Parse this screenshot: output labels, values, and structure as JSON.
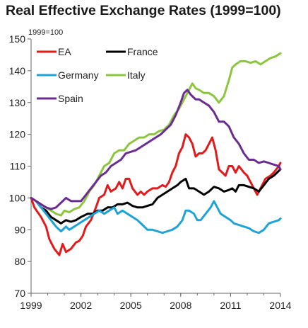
{
  "chart_data": {
    "type": "line",
    "title": "Real Effective Exchange Rates (1999=100)",
    "unit_label": "1999=100",
    "xlabel": "",
    "ylabel": "",
    "xlim": [
      1999,
      2014
    ],
    "ylim": [
      70,
      150
    ],
    "x_ticks": [
      1999,
      2002,
      2005,
      2008,
      2011,
      2014
    ],
    "y_ticks": [
      70,
      80,
      90,
      100,
      110,
      120,
      130,
      140,
      150
    ],
    "grid": false,
    "legend_position": "top-left",
    "series": [
      {
        "name": "EA",
        "color": "#e31a1c",
        "points": [
          [
            1999,
            100
          ],
          [
            1999.2,
            97
          ],
          [
            1999.6,
            94
          ],
          [
            1999.9,
            91
          ],
          [
            2000.1,
            87
          ],
          [
            2000.4,
            84
          ],
          [
            2000.7,
            82
          ],
          [
            2000.9,
            85.5
          ],
          [
            2001.1,
            83
          ],
          [
            2001.4,
            84
          ],
          [
            2001.7,
            86
          ],
          [
            2001.9,
            86.5
          ],
          [
            2002.1,
            88
          ],
          [
            2002.3,
            91
          ],
          [
            2002.6,
            93
          ],
          [
            2002.9,
            97
          ],
          [
            2003.1,
            100
          ],
          [
            2003.4,
            101
          ],
          [
            2003.6,
            104
          ],
          [
            2003.8,
            102
          ],
          [
            2004.1,
            103
          ],
          [
            2004.3,
            105
          ],
          [
            2004.5,
            103
          ],
          [
            2004.7,
            106
          ],
          [
            2004.9,
            106
          ],
          [
            2005.1,
            103
          ],
          [
            2005.4,
            101
          ],
          [
            2005.6,
            102
          ],
          [
            2005.8,
            101
          ],
          [
            2006.0,
            102
          ],
          [
            2006.3,
            103
          ],
          [
            2006.6,
            103
          ],
          [
            2006.9,
            104
          ],
          [
            2007.1,
            103.5
          ],
          [
            2007.3,
            105
          ],
          [
            2007.5,
            108
          ],
          [
            2007.7,
            110
          ],
          [
            2007.9,
            114
          ],
          [
            2008.1,
            116
          ],
          [
            2008.3,
            120
          ],
          [
            2008.5,
            119
          ],
          [
            2008.7,
            117
          ],
          [
            2008.9,
            113
          ],
          [
            2009.1,
            114
          ],
          [
            2009.3,
            114
          ],
          [
            2009.5,
            115
          ],
          [
            2009.7,
            117
          ],
          [
            2009.9,
            119
          ],
          [
            2010.1,
            115
          ],
          [
            2010.3,
            109
          ],
          [
            2010.5,
            108
          ],
          [
            2010.7,
            107
          ],
          [
            2010.9,
            110
          ],
          [
            2011.1,
            110
          ],
          [
            2011.3,
            108
          ],
          [
            2011.5,
            110
          ],
          [
            2011.8,
            108
          ],
          [
            2012.0,
            107
          ],
          [
            2012.3,
            104
          ],
          [
            2012.6,
            101
          ],
          [
            2012.9,
            104
          ],
          [
            2013.1,
            106
          ],
          [
            2013.4,
            107
          ],
          [
            2013.6,
            108
          ],
          [
            2013.9,
            110
          ],
          [
            2014,
            111
          ]
        ]
      },
      {
        "name": "France",
        "color": "#000000",
        "points": [
          [
            1999,
            100
          ],
          [
            1999.3,
            99
          ],
          [
            1999.6,
            97
          ],
          [
            1999.9,
            96
          ],
          [
            2000.2,
            94
          ],
          [
            2000.5,
            93
          ],
          [
            2000.8,
            92
          ],
          [
            2001.1,
            93
          ],
          [
            2001.4,
            92.5
          ],
          [
            2001.7,
            93
          ],
          [
            2002.0,
            94
          ],
          [
            2002.4,
            95
          ],
          [
            2002.7,
            95
          ],
          [
            2003.0,
            96
          ],
          [
            2003.3,
            96
          ],
          [
            2003.6,
            97
          ],
          [
            2003.9,
            97
          ],
          [
            2004.2,
            98
          ],
          [
            2004.5,
            98
          ],
          [
            2004.8,
            98.5
          ],
          [
            2005.1,
            97.5
          ],
          [
            2005.4,
            97
          ],
          [
            2005.7,
            97
          ],
          [
            2006.0,
            97.5
          ],
          [
            2006.3,
            98
          ],
          [
            2006.6,
            100
          ],
          [
            2006.9,
            101
          ],
          [
            2007.2,
            102
          ],
          [
            2007.5,
            103
          ],
          [
            2007.8,
            104
          ],
          [
            2008.0,
            105
          ],
          [
            2008.3,
            106
          ],
          [
            2008.5,
            103
          ],
          [
            2008.8,
            103
          ],
          [
            2009.1,
            102
          ],
          [
            2009.4,
            101
          ],
          [
            2009.7,
            102
          ],
          [
            2010.0,
            103.5
          ],
          [
            2010.3,
            103
          ],
          [
            2010.6,
            102
          ],
          [
            2010.9,
            102.5
          ],
          [
            2011.1,
            103
          ],
          [
            2011.3,
            102
          ],
          [
            2011.5,
            104
          ],
          [
            2011.8,
            104
          ],
          [
            2012.1,
            103.5
          ],
          [
            2012.4,
            103
          ],
          [
            2012.7,
            102
          ],
          [
            2013.0,
            104
          ],
          [
            2013.3,
            106
          ],
          [
            2013.6,
            107
          ],
          [
            2013.8,
            108
          ],
          [
            2014,
            109
          ]
        ]
      },
      {
        "name": "Germany",
        "color": "#1fa3d6",
        "points": [
          [
            1999,
            100
          ],
          [
            1999.3,
            99
          ],
          [
            1999.6,
            97
          ],
          [
            1999.9,
            95
          ],
          [
            2000.2,
            93
          ],
          [
            2000.5,
            91
          ],
          [
            2000.8,
            89.5
          ],
          [
            2001.1,
            91
          ],
          [
            2001.3,
            90
          ],
          [
            2001.6,
            91
          ],
          [
            2001.9,
            92
          ],
          [
            2002.2,
            93
          ],
          [
            2002.5,
            94
          ],
          [
            2002.8,
            95
          ],
          [
            2003.1,
            96
          ],
          [
            2003.4,
            95
          ],
          [
            2003.7,
            96
          ],
          [
            2004.0,
            97
          ],
          [
            2004.2,
            95
          ],
          [
            2004.5,
            96
          ],
          [
            2004.8,
            95
          ],
          [
            2005.1,
            94
          ],
          [
            2005.4,
            93
          ],
          [
            2005.7,
            91.5
          ],
          [
            2006.0,
            90
          ],
          [
            2006.3,
            90
          ],
          [
            2006.6,
            89.5
          ],
          [
            2006.9,
            89
          ],
          [
            2007.2,
            89.5
          ],
          [
            2007.5,
            90
          ],
          [
            2007.8,
            91
          ],
          [
            2008.1,
            93
          ],
          [
            2008.3,
            96
          ],
          [
            2008.5,
            96
          ],
          [
            2008.8,
            95
          ],
          [
            2009.0,
            93
          ],
          [
            2009.2,
            93
          ],
          [
            2009.5,
            95
          ],
          [
            2009.8,
            97
          ],
          [
            2010.0,
            99
          ],
          [
            2010.2,
            97
          ],
          [
            2010.4,
            95
          ],
          [
            2010.7,
            94
          ],
          [
            2011.0,
            93
          ],
          [
            2011.2,
            92
          ],
          [
            2011.5,
            91.5
          ],
          [
            2011.8,
            91
          ],
          [
            2012.1,
            90.5
          ],
          [
            2012.4,
            89.5
          ],
          [
            2012.7,
            89
          ],
          [
            2013.0,
            90
          ],
          [
            2013.3,
            92
          ],
          [
            2013.6,
            92.5
          ],
          [
            2013.9,
            93
          ],
          [
            2014,
            93.5
          ]
        ]
      },
      {
        "name": "Italy",
        "color": "#8cc63f",
        "points": [
          [
            1999,
            100
          ],
          [
            1999.3,
            99
          ],
          [
            1999.6,
            98
          ],
          [
            1999.9,
            97
          ],
          [
            2000.2,
            96
          ],
          [
            2000.5,
            95
          ],
          [
            2000.8,
            94.5
          ],
          [
            2001.0,
            96
          ],
          [
            2001.3,
            95.5
          ],
          [
            2001.6,
            96.5
          ],
          [
            2001.9,
            97
          ],
          [
            2002.2,
            99
          ],
          [
            2002.5,
            102
          ],
          [
            2002.8,
            104
          ],
          [
            2003.1,
            107
          ],
          [
            2003.4,
            110
          ],
          [
            2003.7,
            111
          ],
          [
            2004.0,
            114
          ],
          [
            2004.3,
            115
          ],
          [
            2004.6,
            115
          ],
          [
            2004.9,
            117
          ],
          [
            2005.2,
            118
          ],
          [
            2005.5,
            119
          ],
          [
            2005.8,
            119
          ],
          [
            2006.1,
            120
          ],
          [
            2006.4,
            120
          ],
          [
            2006.7,
            121
          ],
          [
            2007.0,
            121.5
          ],
          [
            2007.3,
            123
          ],
          [
            2007.6,
            126
          ],
          [
            2007.9,
            128
          ],
          [
            2008.2,
            131
          ],
          [
            2008.5,
            134
          ],
          [
            2008.7,
            136
          ],
          [
            2008.9,
            134.5
          ],
          [
            2009.1,
            134
          ],
          [
            2009.4,
            133
          ],
          [
            2009.7,
            133
          ],
          [
            2010.0,
            132
          ],
          [
            2010.3,
            130
          ],
          [
            2010.6,
            132
          ],
          [
            2010.9,
            137
          ],
          [
            2011.1,
            141
          ],
          [
            2011.3,
            142
          ],
          [
            2011.6,
            143
          ],
          [
            2011.9,
            143
          ],
          [
            2012.2,
            142.5
          ],
          [
            2012.5,
            143
          ],
          [
            2012.8,
            142
          ],
          [
            2013.1,
            143
          ],
          [
            2013.4,
            144
          ],
          [
            2013.7,
            144.5
          ],
          [
            2014,
            145.5
          ]
        ]
      },
      {
        "name": "Spain",
        "color": "#6a2c91",
        "points": [
          [
            1999,
            100
          ],
          [
            1999.3,
            99
          ],
          [
            1999.6,
            98
          ],
          [
            1999.9,
            97
          ],
          [
            2000.2,
            96.5
          ],
          [
            2000.5,
            97
          ],
          [
            2000.8,
            98.5
          ],
          [
            2001.1,
            100
          ],
          [
            2001.4,
            99
          ],
          [
            2001.7,
            99
          ],
          [
            2002.0,
            99
          ],
          [
            2002.3,
            101
          ],
          [
            2002.6,
            103
          ],
          [
            2002.9,
            105
          ],
          [
            2003.2,
            107
          ],
          [
            2003.5,
            108
          ],
          [
            2003.8,
            110
          ],
          [
            2004.1,
            111
          ],
          [
            2004.4,
            112
          ],
          [
            2004.7,
            114
          ],
          [
            2005.0,
            114.5
          ],
          [
            2005.3,
            115
          ],
          [
            2005.6,
            116
          ],
          [
            2005.9,
            117
          ],
          [
            2006.2,
            118
          ],
          [
            2006.5,
            119
          ],
          [
            2006.8,
            120
          ],
          [
            2007.1,
            121.5
          ],
          [
            2007.4,
            123
          ],
          [
            2007.7,
            126
          ],
          [
            2008.0,
            130
          ],
          [
            2008.2,
            133
          ],
          [
            2008.4,
            134
          ],
          [
            2008.6,
            132.5
          ],
          [
            2008.9,
            131
          ],
          [
            2009.1,
            131
          ],
          [
            2009.4,
            130
          ],
          [
            2009.7,
            129
          ],
          [
            2010.0,
            127
          ],
          [
            2010.3,
            124
          ],
          [
            2010.6,
            124
          ],
          [
            2010.9,
            122.5
          ],
          [
            2011.2,
            119
          ],
          [
            2011.5,
            117
          ],
          [
            2011.8,
            114
          ],
          [
            2012.1,
            112
          ],
          [
            2012.4,
            112
          ],
          [
            2012.7,
            111
          ],
          [
            2013.0,
            111.5
          ],
          [
            2013.3,
            111
          ],
          [
            2013.6,
            110.5
          ],
          [
            2013.9,
            110
          ],
          [
            2014,
            109
          ]
        ]
      }
    ]
  }
}
